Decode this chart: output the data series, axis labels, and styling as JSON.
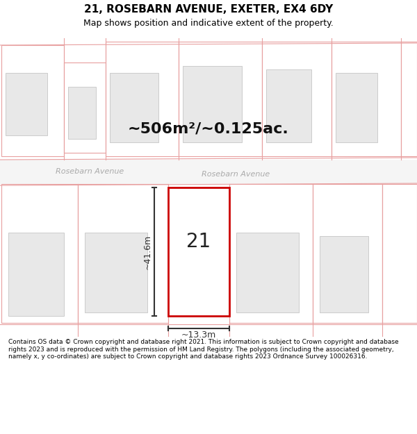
{
  "title": "21, ROSEBARN AVENUE, EXETER, EX4 6DY",
  "subtitle": "Map shows position and indicative extent of the property.",
  "area_label": "~506m²/~0.125ac.",
  "house_number": "21",
  "dim_height": "~41.6m",
  "dim_width": "~13.3m",
  "street_name_left": "Rosebarn Avenue",
  "street_name_right": "Rosebarn Avenue",
  "footer": "Contains OS data © Crown copyright and database right 2021. This information is subject to Crown copyright and database rights 2023 and is reproduced with the permission of HM Land Registry. The polygons (including the associated geometry, namely x, y co-ordinates) are subject to Crown copyright and database rights 2023 Ordnance Survey 100026316.",
  "bg_color": "#ffffff",
  "map_bg": "#ffffff",
  "plot_border_color": "#cc0000",
  "neighbor_border_color": "#e8a0a0",
  "neighbor_fill_color": "#e8e8e8",
  "street_color": "#f0f0f0",
  "title_color": "#000000",
  "footer_color": "#000000",
  "street_label_color": "#aaaaaa",
  "dim_line_color": "#333333"
}
